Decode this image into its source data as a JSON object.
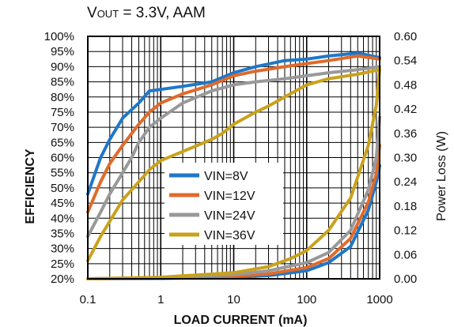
{
  "chart_data": {
    "type": "line",
    "title_main": "V",
    "title_sub": "OUT",
    "title_rest": " = 3.3V, AAM",
    "xlabel": "LOAD CURRENT  (mA)",
    "ylabel": "EFFICIENCY",
    "y2label": "Power Loss (W)",
    "xscale": "log",
    "xlim": [
      0.1,
      1000
    ],
    "ylim": [
      20,
      100
    ],
    "y2lim": [
      0,
      0.6
    ],
    "grid": true,
    "legend_placement": "center-left",
    "x_ticks": [
      "0.1",
      "1",
      "10",
      "100",
      "1000"
    ],
    "y_ticks": [
      "20%",
      "25%",
      "30%",
      "35%",
      "40%",
      "45%",
      "50%",
      "55%",
      "60%",
      "65%",
      "70%",
      "75%",
      "80%",
      "85%",
      "90%",
      "95%",
      "100%"
    ],
    "y2_ticks": [
      "0.00",
      "0.06",
      "0.12",
      "0.18",
      "0.24",
      "0.30",
      "0.36",
      "0.42",
      "0.48",
      "0.54",
      "0.60"
    ],
    "series": [
      {
        "name": "VIN=8V",
        "color": "#1f77c8",
        "efficiency": [
          [
            0.1,
            48
          ],
          [
            0.15,
            60
          ],
          [
            0.2,
            66
          ],
          [
            0.3,
            73
          ],
          [
            0.5,
            78
          ],
          [
            0.7,
            82
          ],
          [
            1,
            82.5
          ],
          [
            2,
            83.5
          ],
          [
            5,
            85
          ],
          [
            10,
            88
          ],
          [
            20,
            90
          ],
          [
            50,
            92
          ],
          [
            100,
            92.5
          ],
          [
            200,
            93.5
          ],
          [
            500,
            94.5
          ],
          [
            1000,
            93
          ]
        ],
        "power_loss": [
          [
            0.1,
            0.0
          ],
          [
            1,
            0.001
          ],
          [
            10,
            0.004
          ],
          [
            30,
            0.008
          ],
          [
            100,
            0.02
          ],
          [
            200,
            0.04
          ],
          [
            400,
            0.08
          ],
          [
            700,
            0.17
          ],
          [
            900,
            0.24
          ],
          [
            1000,
            0.28
          ]
        ]
      },
      {
        "name": "VIN=12V",
        "color": "#e06a2b",
        "efficiency": [
          [
            0.1,
            42
          ],
          [
            0.15,
            52
          ],
          [
            0.2,
            58
          ],
          [
            0.3,
            64
          ],
          [
            0.5,
            71
          ],
          [
            0.7,
            75
          ],
          [
            1,
            78
          ],
          [
            2,
            81
          ],
          [
            5,
            84
          ],
          [
            10,
            87
          ],
          [
            20,
            88.5
          ],
          [
            50,
            90
          ],
          [
            100,
            91
          ],
          [
            200,
            92
          ],
          [
            500,
            93.5
          ],
          [
            1000,
            92.5
          ]
        ],
        "power_loss": [
          [
            0.1,
            0.0
          ],
          [
            1,
            0.002
          ],
          [
            10,
            0.006
          ],
          [
            30,
            0.012
          ],
          [
            100,
            0.028
          ],
          [
            200,
            0.05
          ],
          [
            400,
            0.1
          ],
          [
            700,
            0.19
          ],
          [
            900,
            0.26
          ],
          [
            1000,
            0.33
          ]
        ]
      },
      {
        "name": "VIN=24V",
        "color": "#999999",
        "efficiency": [
          [
            0.1,
            34
          ],
          [
            0.15,
            42
          ],
          [
            0.2,
            48
          ],
          [
            0.3,
            55
          ],
          [
            0.4,
            60
          ],
          [
            0.5,
            65
          ],
          [
            0.7,
            70
          ],
          [
            1,
            73
          ],
          [
            2,
            78
          ],
          [
            5,
            82
          ],
          [
            10,
            84
          ],
          [
            20,
            85
          ],
          [
            50,
            86
          ],
          [
            100,
            87
          ],
          [
            200,
            88
          ],
          [
            500,
            89
          ],
          [
            1000,
            90
          ]
        ],
        "power_loss": [
          [
            0.1,
            0.0
          ],
          [
            1,
            0.003
          ],
          [
            10,
            0.01
          ],
          [
            30,
            0.02
          ],
          [
            100,
            0.04
          ],
          [
            200,
            0.065
          ],
          [
            400,
            0.12
          ],
          [
            700,
            0.22
          ],
          [
            900,
            0.3
          ],
          [
            1000,
            0.4
          ]
        ]
      },
      {
        "name": "VIN=36V",
        "color": "#c9a21c",
        "efficiency": [
          [
            0.1,
            26
          ],
          [
            0.15,
            34
          ],
          [
            0.2,
            39
          ],
          [
            0.3,
            46
          ],
          [
            0.5,
            52
          ],
          [
            0.7,
            56
          ],
          [
            1,
            59
          ],
          [
            2,
            62
          ],
          [
            5,
            66
          ],
          [
            7,
            68
          ],
          [
            10,
            71
          ],
          [
            20,
            75
          ],
          [
            30,
            77
          ],
          [
            50,
            80
          ],
          [
            100,
            84
          ],
          [
            200,
            86
          ],
          [
            500,
            87.5
          ],
          [
            1000,
            89
          ]
        ],
        "power_loss": [
          [
            0.1,
            0.0
          ],
          [
            1,
            0.004
          ],
          [
            10,
            0.015
          ],
          [
            30,
            0.03
          ],
          [
            60,
            0.05
          ],
          [
            100,
            0.07
          ],
          [
            200,
            0.12
          ],
          [
            400,
            0.2
          ],
          [
            700,
            0.33
          ],
          [
            900,
            0.43
          ],
          [
            1000,
            0.52
          ]
        ]
      }
    ]
  }
}
